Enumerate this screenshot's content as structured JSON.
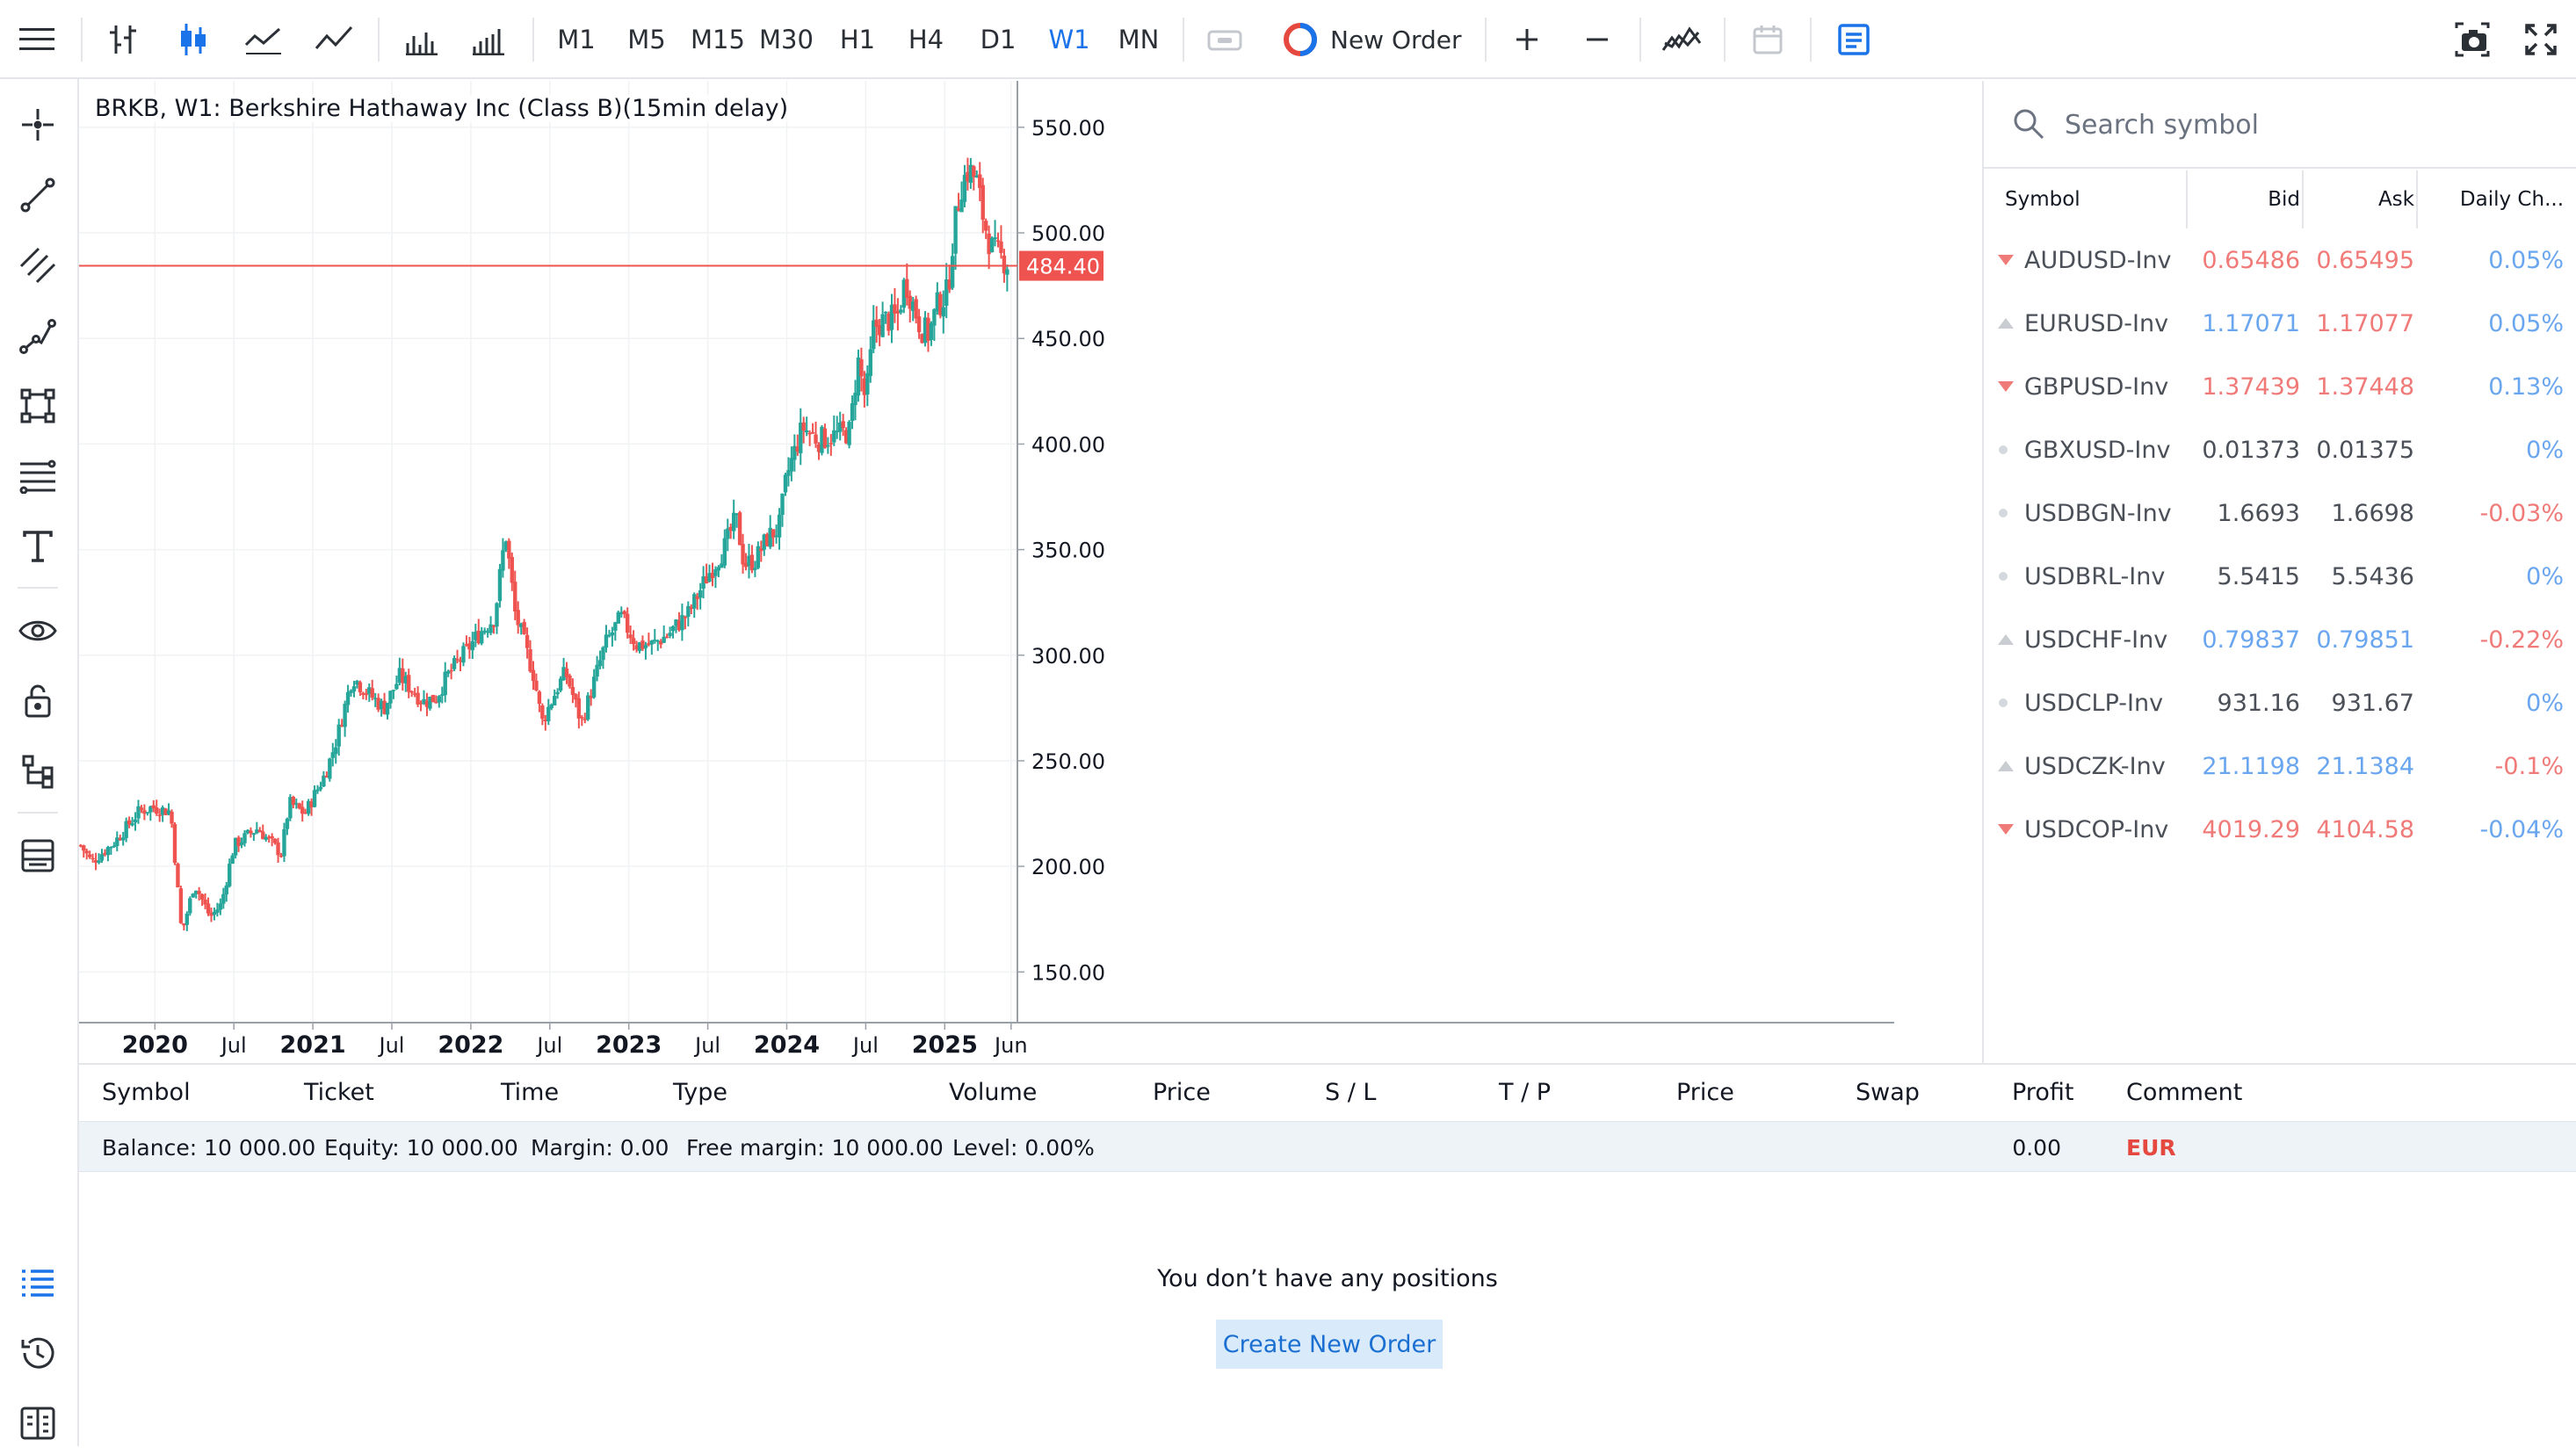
{
  "toolbar": {
    "timeframes": [
      "M1",
      "M5",
      "M15",
      "M30",
      "H1",
      "H4",
      "D1",
      "W1",
      "MN"
    ],
    "active_timeframe": "W1",
    "new_order_label": "New Order"
  },
  "chart": {
    "title": "BRKB, W1: Berkshire Hathaway Inc (Class B)(15min delay)",
    "current_price_label": "484.40"
  },
  "chart_data": {
    "type": "candlestick",
    "title": "BRKB, W1: Berkshire Hathaway Inc (Class B)(15min delay)",
    "y_ticks": [
      "550.00",
      "500.00",
      "450.00",
      "400.00",
      "350.00",
      "300.00",
      "250.00",
      "200.00",
      "150.00"
    ],
    "ylim": [
      126,
      572
    ],
    "x_ticks": [
      {
        "label": "2020",
        "t": 2020.0,
        "bold": true
      },
      {
        "label": "Jul",
        "t": 2020.5,
        "bold": false
      },
      {
        "label": "2021",
        "t": 2021.0,
        "bold": true
      },
      {
        "label": "Jul",
        "t": 2021.5,
        "bold": false
      },
      {
        "label": "2022",
        "t": 2022.0,
        "bold": true
      },
      {
        "label": "Jul",
        "t": 2022.5,
        "bold": false
      },
      {
        "label": "2023",
        "t": 2023.0,
        "bold": true
      },
      {
        "label": "Jul",
        "t": 2023.5,
        "bold": false
      },
      {
        "label": "2024",
        "t": 2024.0,
        "bold": true
      },
      {
        "label": "Jul",
        "t": 2024.5,
        "bold": false
      },
      {
        "label": "2025",
        "t": 2025.0,
        "bold": true
      },
      {
        "label": "Jun",
        "t": 2025.42,
        "bold": false
      }
    ],
    "xlim": [
      2019.52,
      2025.46
    ],
    "current_price": 484.4,
    "close_anchors": [
      [
        2019.53,
        210
      ],
      [
        2019.6,
        202
      ],
      [
        2019.75,
        212
      ],
      [
        2019.9,
        226
      ],
      [
        2019.98,
        228
      ],
      [
        2020.1,
        226
      ],
      [
        2020.17,
        168
      ],
      [
        2020.25,
        192
      ],
      [
        2020.35,
        176
      ],
      [
        2020.42,
        182
      ],
      [
        2020.5,
        210
      ],
      [
        2020.65,
        218
      ],
      [
        2020.8,
        206
      ],
      [
        2020.85,
        230
      ],
      [
        2020.95,
        225
      ],
      [
        2021.08,
        244
      ],
      [
        2021.15,
        260
      ],
      [
        2021.25,
        290
      ],
      [
        2021.35,
        282
      ],
      [
        2021.45,
        275
      ],
      [
        2021.55,
        290
      ],
      [
        2021.7,
        278
      ],
      [
        2021.78,
        280
      ],
      [
        2021.85,
        290
      ],
      [
        2021.95,
        300
      ],
      [
        2022.05,
        310
      ],
      [
        2022.15,
        318
      ],
      [
        2022.22,
        358
      ],
      [
        2022.28,
        320
      ],
      [
        2022.4,
        290
      ],
      [
        2022.45,
        268
      ],
      [
        2022.55,
        285
      ],
      [
        2022.6,
        292
      ],
      [
        2022.7,
        268
      ],
      [
        2022.75,
        280
      ],
      [
        2022.85,
        305
      ],
      [
        2022.95,
        318
      ],
      [
        2023.05,
        305
      ],
      [
        2023.15,
        305
      ],
      [
        2023.25,
        310
      ],
      [
        2023.38,
        320
      ],
      [
        2023.5,
        338
      ],
      [
        2023.6,
        350
      ],
      [
        2023.68,
        365
      ],
      [
        2023.73,
        343
      ],
      [
        2023.8,
        345
      ],
      [
        2023.88,
        356
      ],
      [
        2023.95,
        360
      ],
      [
        2024.0,
        385
      ],
      [
        2024.1,
        408
      ],
      [
        2024.2,
        402
      ],
      [
        2024.3,
        404
      ],
      [
        2024.4,
        406
      ],
      [
        2024.45,
        440
      ],
      [
        2024.5,
        420
      ],
      [
        2024.55,
        455
      ],
      [
        2024.6,
        458
      ],
      [
        2024.7,
        460
      ],
      [
        2024.75,
        478
      ],
      [
        2024.8,
        466
      ],
      [
        2024.85,
        455
      ],
      [
        2024.9,
        452
      ],
      [
        2024.95,
        465
      ],
      [
        2025.02,
        472
      ],
      [
        2025.05,
        496
      ],
      [
        2025.1,
        522
      ],
      [
        2025.15,
        530
      ],
      [
        2025.2,
        525
      ],
      [
        2025.25,
        505
      ],
      [
        2025.3,
        492
      ],
      [
        2025.36,
        488
      ],
      [
        2025.4,
        486
      ]
    ]
  },
  "watchlist": {
    "search_placeholder": "Search symbol",
    "headers": {
      "symbol": "Symbol",
      "bid": "Bid",
      "ask": "Ask",
      "daily": "Daily Ch..."
    },
    "rows": [
      {
        "symbol": "AUDUSD-Inv",
        "bid": "0.65486",
        "ask": "0.65495",
        "change": "0.05%",
        "dir": "down",
        "bid_color": "#f07a78",
        "change_color": "#6aa6ef"
      },
      {
        "symbol": "EURUSD-Inv",
        "bid": "1.17071",
        "ask": "1.17077",
        "change": "0.05%",
        "dir": "up",
        "bid_color": "#6aa6ef",
        "ask_color": "#f07a78",
        "change_color": "#6aa6ef"
      },
      {
        "symbol": "GBPUSD-Inv",
        "bid": "1.37439",
        "ask": "1.37448",
        "change": "0.13%",
        "dir": "down",
        "bid_color": "#f07a78",
        "change_color": "#6aa6ef"
      },
      {
        "symbol": "GBXUSD-Inv",
        "bid": "0.01373",
        "ask": "0.01375",
        "change": "0%",
        "dir": "none",
        "bid_color": "#4b5058",
        "change_color": "#6aa6ef"
      },
      {
        "symbol": "USDBGN-Inv",
        "bid": "1.6693",
        "ask": "1.6698",
        "change": "-0.03%",
        "dir": "none",
        "bid_color": "#4b5058",
        "change_color": "#f07a78"
      },
      {
        "symbol": "USDBRL-Inv",
        "bid": "5.5415",
        "ask": "5.5436",
        "change": "0%",
        "dir": "none",
        "bid_color": "#4b5058",
        "change_color": "#6aa6ef"
      },
      {
        "symbol": "USDCHF-Inv",
        "bid": "0.79837",
        "ask": "0.79851",
        "change": "-0.22%",
        "dir": "up",
        "bid_color": "#6aa6ef",
        "change_color": "#f07a78"
      },
      {
        "symbol": "USDCLP-Inv",
        "bid": "931.16",
        "ask": "931.67",
        "change": "0%",
        "dir": "none",
        "bid_color": "#4b5058",
        "change_color": "#6aa6ef"
      },
      {
        "symbol": "USDCZK-Inv",
        "bid": "21.1198",
        "ask": "21.1384",
        "change": "-0.1%",
        "dir": "up",
        "bid_color": "#6aa6ef",
        "change_color": "#f07a78"
      },
      {
        "symbol": "USDCOP-Inv",
        "bid": "4019.29",
        "ask": "4104.58",
        "change": "-0.04%",
        "dir": "down",
        "bid_color": "#f07a78",
        "change_color": "#6aa6ef"
      }
    ]
  },
  "positions": {
    "headers": [
      "Symbol",
      "Ticket",
      "Time",
      "Type",
      "Volume",
      "Price",
      "S / L",
      "T / P",
      "Price",
      "Swap",
      "Profit",
      "Comment"
    ],
    "balance": "Balance: 10 000.00",
    "equity": "Equity: 10 000.00",
    "margin": "Margin: 0.00",
    "free_margin": "Free margin: 10 000.00",
    "level": "Level: 0.00%",
    "profit": "0.00",
    "currency": "EUR",
    "empty_message": "You don’t have any positions",
    "create_button": "Create New Order"
  },
  "colors": {
    "up": "#26a69a",
    "down": "#ef5350",
    "accent": "#1a73e8",
    "price_line": "#ef5350"
  }
}
